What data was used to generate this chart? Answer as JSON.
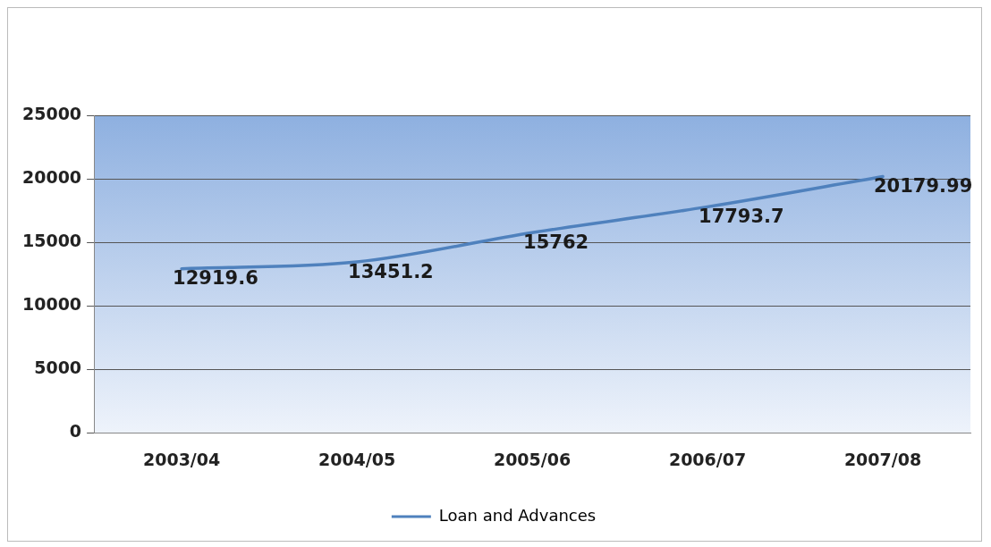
{
  "chart_data": {
    "type": "line",
    "categories": [
      "2003/04",
      "2004/05",
      "2005/06",
      "2006/07",
      "2007/08"
    ],
    "series": [
      {
        "name": "Loan and Advances",
        "color": "#4f81bd",
        "values": [
          12919.6,
          13451.2,
          15762,
          17793.7,
          20179.99
        ]
      }
    ],
    "ylim": [
      0,
      25000
    ],
    "yticks": [
      0,
      5000,
      10000,
      15000,
      20000,
      25000
    ],
    "grid": "y",
    "legend": "bottom",
    "marker": "none",
    "line_style": "solid",
    "data_labels": true
  }
}
